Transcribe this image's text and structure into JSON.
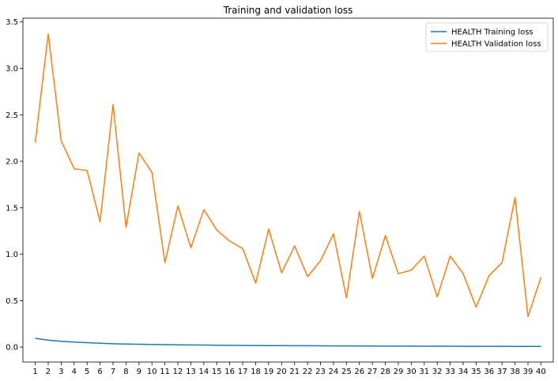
{
  "chart_data": {
    "type": "line",
    "title": "Training and validation loss",
    "xlabel": "",
    "ylabel": "",
    "x": [
      1,
      2,
      3,
      4,
      5,
      6,
      7,
      8,
      9,
      10,
      11,
      12,
      13,
      14,
      15,
      16,
      17,
      18,
      19,
      20,
      21,
      22,
      23,
      24,
      25,
      26,
      27,
      28,
      29,
      30,
      31,
      32,
      33,
      34,
      35,
      36,
      37,
      38,
      39,
      40
    ],
    "xticks": [
      "1",
      "2",
      "3",
      "4",
      "5",
      "6",
      "7",
      "8",
      "9",
      "10",
      "11",
      "12",
      "13",
      "14",
      "15",
      "16",
      "17",
      "18",
      "19",
      "20",
      "21",
      "22",
      "23",
      "24",
      "25",
      "26",
      "27",
      "28",
      "29",
      "30",
      "31",
      "32",
      "33",
      "34",
      "35",
      "36",
      "37",
      "38",
      "39",
      "40"
    ],
    "yticks": [
      0.0,
      0.5,
      1.0,
      1.5,
      2.0,
      2.5,
      3.0,
      3.5
    ],
    "ytick_labels": [
      "0.0",
      "0.5",
      "1.0",
      "1.5",
      "2.0",
      "2.5",
      "3.0",
      "3.5"
    ],
    "xlim": [
      0.05,
      40.95
    ],
    "ylim": [
      -0.16,
      3.54
    ],
    "grid": false,
    "legend": "top-right",
    "series": [
      {
        "name": "HEALTH Training loss",
        "color": "#1f77b4",
        "values": [
          0.095,
          0.075,
          0.063,
          0.055,
          0.048,
          0.042,
          0.037,
          0.033,
          0.031,
          0.029,
          0.027,
          0.025,
          0.024,
          0.023,
          0.021,
          0.02,
          0.019,
          0.018,
          0.017,
          0.016,
          0.015,
          0.015,
          0.014,
          0.013,
          0.013,
          0.012,
          0.012,
          0.011,
          0.011,
          0.011,
          0.01,
          0.01,
          0.01,
          0.009,
          0.009,
          0.009,
          0.009,
          0.008,
          0.008,
          0.008
        ]
      },
      {
        "name": "HEALTH Validation loss",
        "color": "#ff7f0e",
        "values": [
          2.2,
          3.37,
          2.22,
          1.92,
          1.9,
          1.35,
          2.61,
          1.29,
          2.09,
          1.88,
          0.91,
          1.52,
          1.07,
          1.48,
          1.26,
          1.14,
          1.06,
          0.69,
          1.27,
          0.8,
          1.09,
          0.76,
          0.93,
          1.22,
          0.53,
          1.46,
          0.74,
          1.2,
          0.79,
          0.83,
          0.98,
          0.54,
          0.98,
          0.79,
          0.43,
          0.77,
          0.91,
          1.61,
          0.33,
          0.75
        ]
      }
    ]
  }
}
